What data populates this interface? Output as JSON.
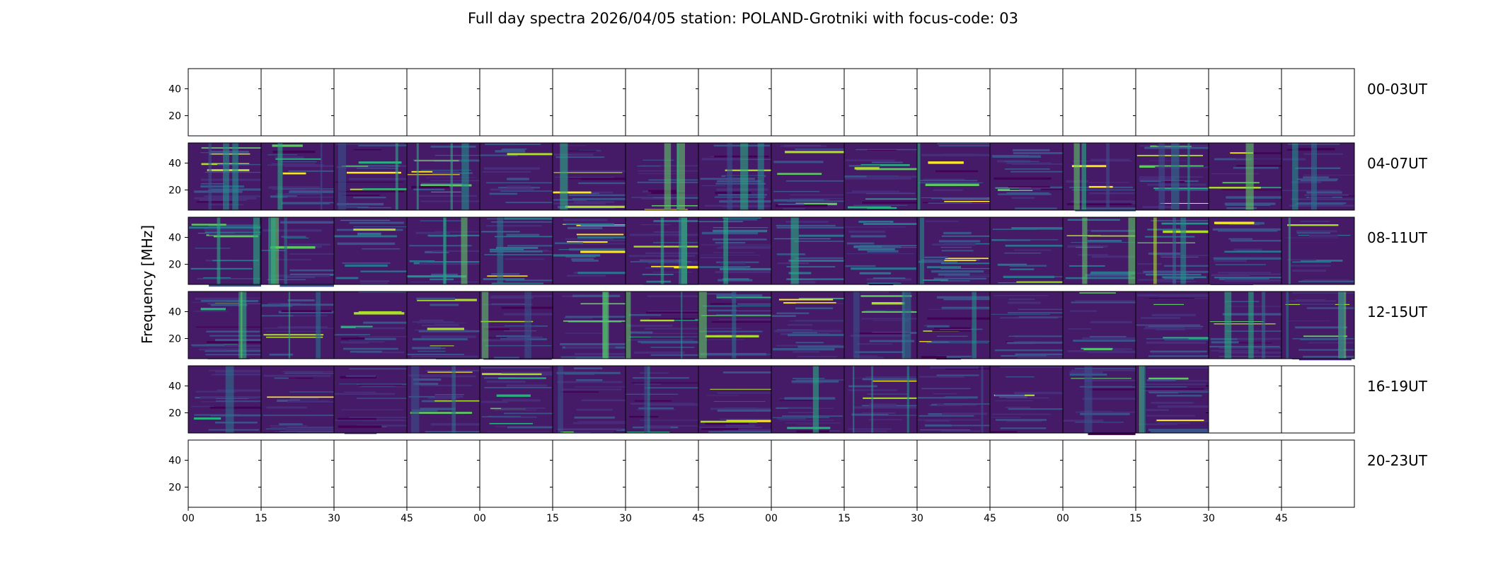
{
  "chart_data": {
    "type": "heatmap",
    "title": "Full day spectra 2026/04/05 station: POLAND-Grotniki with focus-code: 03",
    "ylabel": "Frequency [MHz]",
    "xlabel": "",
    "ylim": [
      5,
      55
    ],
    "yticks": [
      20,
      40
    ],
    "xtick_labels": [
      "00",
      "15",
      "30",
      "45",
      "00",
      "15",
      "30",
      "45",
      "00",
      "15",
      "30",
      "45",
      "00",
      "15",
      "30",
      "45"
    ],
    "colormap": [
      "#440154",
      "#472d7b",
      "#3b528b",
      "#2c728e",
      "#21918c",
      "#28ae80",
      "#5ec962",
      "#addc30",
      "#fde725"
    ],
    "rows": [
      {
        "label": "00-03UT",
        "panels": [
          0,
          0,
          0,
          0,
          0,
          0,
          0,
          0,
          0,
          0,
          0,
          0,
          0,
          0,
          0,
          0
        ],
        "mean": 0.0
      },
      {
        "label": "04-07UT",
        "panels": [
          1,
          1,
          1,
          1,
          1,
          1,
          1,
          1,
          1,
          1,
          1,
          1,
          1,
          1,
          1,
          1
        ],
        "mean": 0.22
      },
      {
        "label": "08-11UT",
        "panels": [
          1,
          1,
          1,
          1,
          1,
          1,
          1,
          1,
          1,
          1,
          1,
          1,
          1,
          1,
          1,
          1
        ],
        "mean": 0.32
      },
      {
        "label": "12-15UT",
        "panels": [
          1,
          1,
          1,
          1,
          1,
          1,
          1,
          1,
          1,
          1,
          1,
          1,
          1,
          1,
          1,
          1
        ],
        "mean": 0.24
      },
      {
        "label": "16-19UT",
        "panels": [
          1,
          1,
          1,
          1,
          1,
          1,
          1,
          1,
          1,
          1,
          1,
          1,
          1,
          1,
          0,
          0
        ],
        "mean": 0.22
      },
      {
        "label": "20-23UT",
        "panels": [
          0,
          0,
          0,
          0,
          0,
          0,
          0,
          0,
          0,
          0,
          0,
          0,
          0,
          0,
          0,
          0
        ],
        "mean": 0.0
      }
    ]
  }
}
